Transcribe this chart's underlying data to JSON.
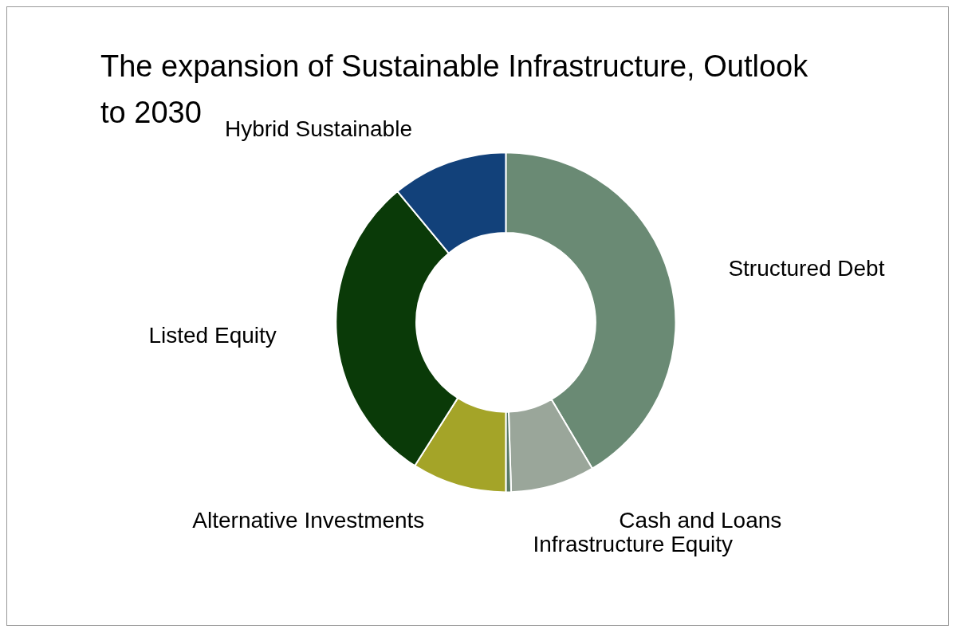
{
  "chart_data": {
    "type": "donut",
    "title": "The expansion of Sustainable Infrastructure, Outlook to 2030",
    "categories": [
      "Structured Debt",
      "Cash and Loans",
      "Infrastructure Equity",
      "Alternative Investments",
      "Listed Equity",
      "Hybrid Sustainable"
    ],
    "values": [
      41.5,
      8,
      0.5,
      9,
      30,
      11
    ],
    "colors": [
      "#6a8a74",
      "#9aa69a",
      "#5a7a66",
      "#a4a428",
      "#0a3a08",
      "#12417a"
    ],
    "legend": false
  }
}
